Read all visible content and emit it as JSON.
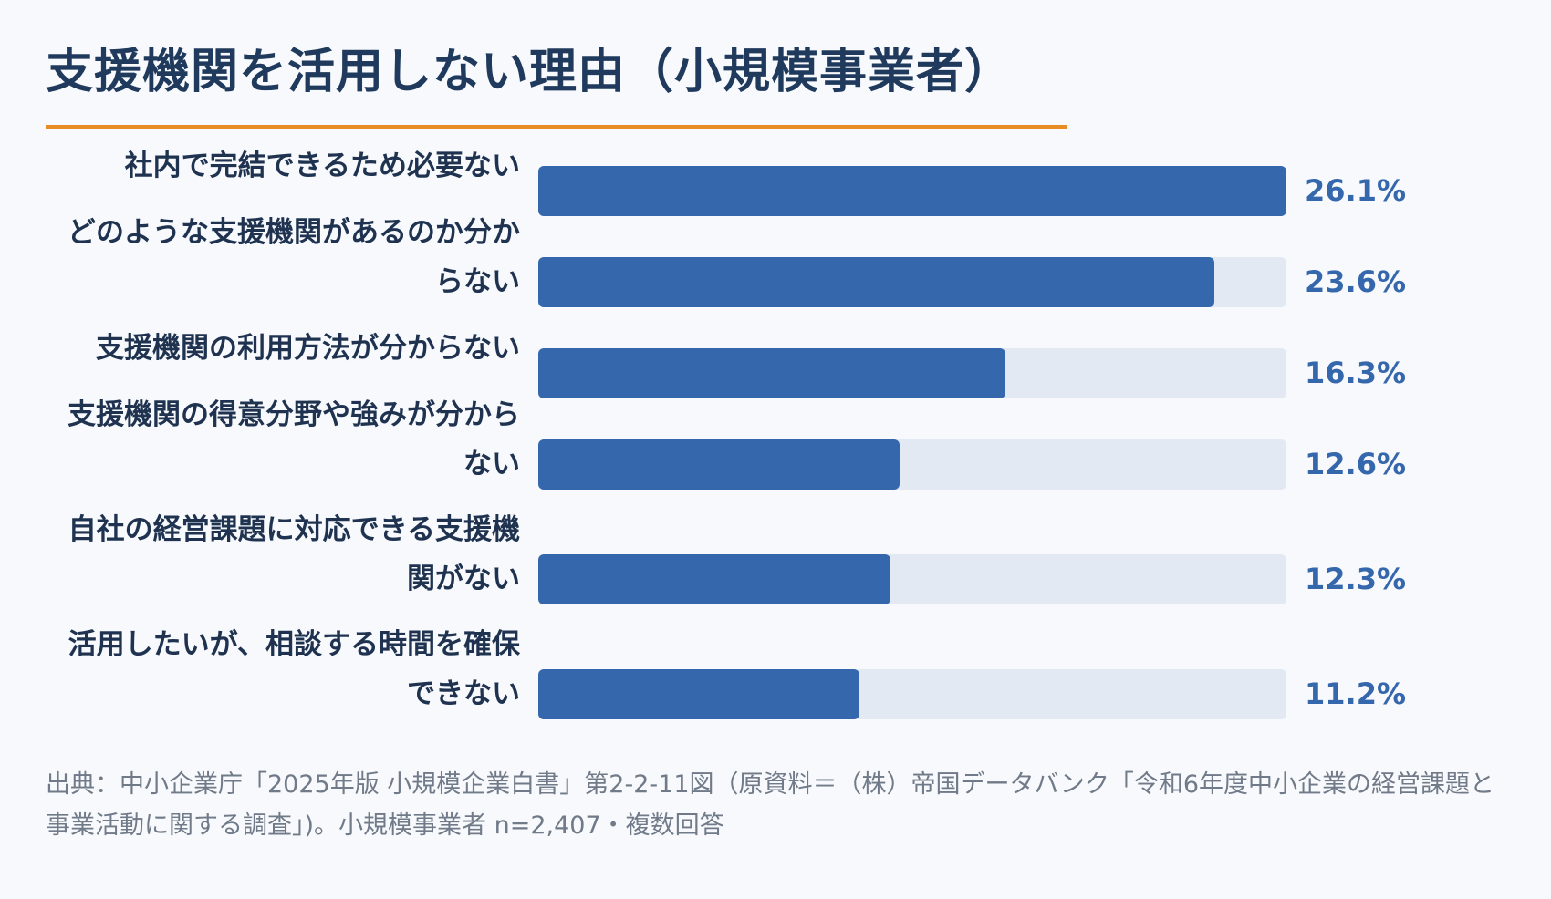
{
  "page": {
    "title": "支援機関を活用しない理由（小規模事業者）",
    "source": "出典：中小企業庁「2025年版 小規模企業白書」第2-2-11図（原資料＝（株）帝国データバンク「令和6年度中小企業の経営課題と事業活動に関する調査」)。小規模事業者 n=2,407・複数回答"
  },
  "colors": {
    "accent": "#e88d23",
    "bar": "#3567ad",
    "track": "#e2e9f3",
    "title": "#1f3a5c"
  },
  "chart_data": {
    "type": "bar",
    "orientation": "horizontal",
    "categories": [
      "社内で完結できるため必要ない",
      "どのような支援機関があるのか分からない",
      "支援機関の利用方法が分からない",
      "支援機関の得意分野や強みが分からない",
      "自社の経営課題に対応できる支援機関がない",
      "活用したいが、相談する時間を確保できない"
    ],
    "values": [
      26.1,
      23.6,
      16.3,
      12.6,
      12.3,
      11.2
    ],
    "value_labels": [
      "26.1%",
      "23.6%",
      "16.3%",
      "12.6%",
      "12.3%",
      "11.2%"
    ],
    "unit": "%",
    "xlim": [
      0,
      26.1
    ],
    "grid": false,
    "legend": "none"
  }
}
